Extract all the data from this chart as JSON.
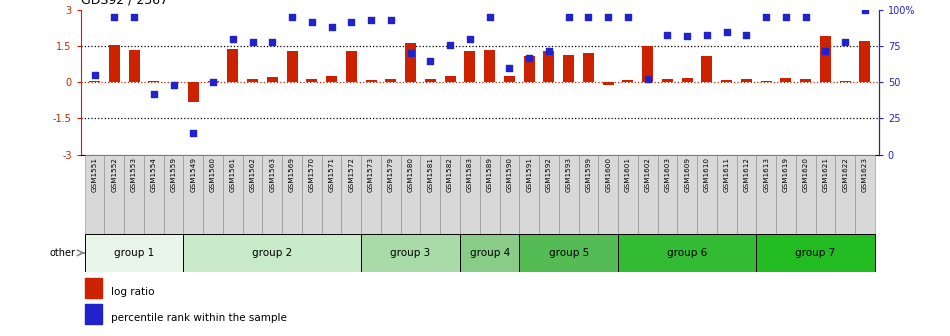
{
  "title": "GDS92 / 2367",
  "samples": [
    "GSM1551",
    "GSM1552",
    "GSM1553",
    "GSM1554",
    "GSM1559",
    "GSM1549",
    "GSM1560",
    "GSM1561",
    "GSM1562",
    "GSM1563",
    "GSM1569",
    "GSM1570",
    "GSM1571",
    "GSM1572",
    "GSM1573",
    "GSM1579",
    "GSM1580",
    "GSM1581",
    "GSM1582",
    "GSM1583",
    "GSM1589",
    "GSM1590",
    "GSM1591",
    "GSM1592",
    "GSM1593",
    "GSM1599",
    "GSM1600",
    "GSM1601",
    "GSM1602",
    "GSM1603",
    "GSM1609",
    "GSM1610",
    "GSM1611",
    "GSM1612",
    "GSM1613",
    "GSM1619",
    "GSM1620",
    "GSM1621",
    "GSM1622",
    "GSM1623"
  ],
  "log_ratio": [
    0.05,
    1.55,
    1.35,
    0.05,
    0.03,
    -0.82,
    0.07,
    1.4,
    0.15,
    0.22,
    1.3,
    0.13,
    0.28,
    1.3,
    0.1,
    0.14,
    1.62,
    0.12,
    0.27,
    1.32,
    1.35,
    0.25,
    1.1,
    1.3,
    1.15,
    1.22,
    -0.12,
    0.08,
    1.52,
    0.12,
    0.16,
    1.08,
    0.08,
    0.13,
    0.07,
    0.16,
    0.12,
    1.92,
    0.06,
    1.72
  ],
  "percentile": [
    55,
    95,
    95,
    42,
    48,
    15,
    50,
    80,
    78,
    78,
    95,
    92,
    88,
    92,
    93,
    93,
    70,
    65,
    76,
    80,
    95,
    60,
    67,
    72,
    95,
    95,
    95,
    95,
    52,
    83,
    82,
    83,
    85,
    83,
    95,
    95,
    95,
    72,
    78,
    100
  ],
  "bar_color": "#cc2200",
  "dot_color": "#2222cc",
  "ylim": [
    -3,
    3
  ],
  "y2lim": [
    0,
    100
  ],
  "group_definitions": [
    {
      "label": "group 1",
      "start": 0,
      "end": 5,
      "color": "#e8f5e8"
    },
    {
      "label": "group 2",
      "start": 5,
      "end": 14,
      "color": "#c8eac8"
    },
    {
      "label": "group 3",
      "start": 14,
      "end": 19,
      "color": "#a8dba8"
    },
    {
      "label": "group 4",
      "start": 19,
      "end": 22,
      "color": "#88cc88"
    },
    {
      "label": "group 5",
      "start": 22,
      "end": 27,
      "color": "#55bb55"
    },
    {
      "label": "group 6",
      "start": 27,
      "end": 34,
      "color": "#33bb33"
    },
    {
      "label": "group 7",
      "start": 34,
      "end": 40,
      "color": "#22bb22"
    }
  ],
  "sample_box_color": "#d8d8d8",
  "sample_box_edge": "#888888"
}
